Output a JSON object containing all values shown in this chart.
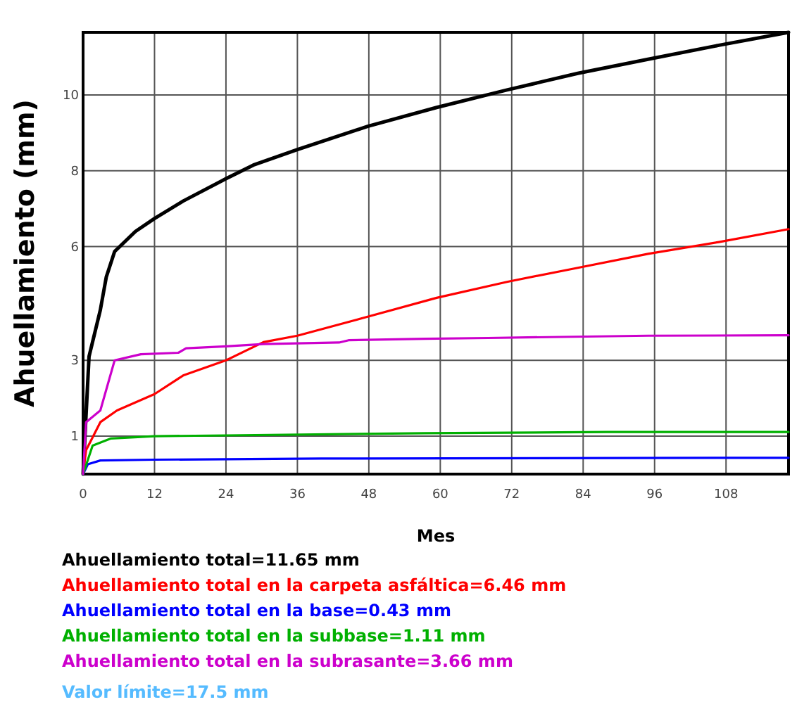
{
  "chart_data": {
    "type": "line",
    "xlabel": "Mes",
    "ylabel": "Ahuellamiento (mm)",
    "xlim": [
      0,
      118.5
    ],
    "xticks": [
      0,
      12,
      24,
      36,
      48,
      60,
      72,
      84,
      96,
      108
    ],
    "ylim": [
      0,
      11.65
    ],
    "yticks": [
      1,
      3,
      6,
      8,
      10
    ],
    "grid": true,
    "legend": "bottom",
    "line_style": "solid",
    "marker": "none",
    "series": [
      {
        "name": "Ahuellamiento total=11.65 mm",
        "color": "#000000",
        "x": [
          0,
          1,
          2.9,
          3.9,
          5.3,
          8.8,
          12,
          16.8,
          24,
          28.6,
          36,
          47.8,
          59.4,
          71.2,
          83.1,
          94.9,
          106.8,
          118.5
        ],
        "values": [
          0,
          3.1,
          4.33,
          5.2,
          5.87,
          6.4,
          6.74,
          7.2,
          7.79,
          8.15,
          8.56,
          9.17,
          9.67,
          10.13,
          10.57,
          10.94,
          11.31,
          11.65
        ]
      },
      {
        "name": "Ahuellamiento total en la carpeta asfáltica=6.46 mm",
        "color": "#ff0000",
        "x": [
          0,
          0.5,
          2.9,
          5.7,
          12,
          16.8,
          24,
          30.3,
          36,
          47.8,
          59.4,
          71.2,
          83.1,
          94.9,
          106.8,
          118.5
        ],
        "values": [
          0,
          0.63,
          1.37,
          1.68,
          2.11,
          2.6,
          3.0,
          3.48,
          3.65,
          4.15,
          4.65,
          5.07,
          5.44,
          5.81,
          6.12,
          6.46
        ]
      },
      {
        "name": "Ahuellamiento total en la base=0.43 mm",
        "color": "#0000ff",
        "x": [
          0,
          0.8,
          2.9,
          12,
          40,
          112,
          118.5
        ],
        "values": [
          0,
          0.26,
          0.36,
          0.38,
          0.41,
          0.43,
          0.43
        ]
      },
      {
        "name": "Ahuellamiento total en la subbase=1.11 mm",
        "color": "#00b000",
        "x": [
          0,
          1.6,
          4.7,
          12,
          24,
          57.4,
          88,
          118.5
        ],
        "values": [
          0,
          0.75,
          0.94,
          1.0,
          1.02,
          1.08,
          1.11,
          1.11
        ]
      },
      {
        "name": "Ahuellamiento total en la subrasante=3.66 mm",
        "color": "#cc00cc",
        "x": [
          0,
          0.5,
          2.9,
          5.3,
          9.7,
          16,
          17.3,
          24,
          30.3,
          43,
          44.6,
          57.4,
          68,
          94.9,
          118.5
        ],
        "values": [
          0,
          1.37,
          1.68,
          3.0,
          3.16,
          3.2,
          3.32,
          3.37,
          3.43,
          3.47,
          3.53,
          3.57,
          3.59,
          3.65,
          3.66
        ]
      }
    ],
    "annotations": [
      "Valor límite=17.5 mm"
    ]
  }
}
